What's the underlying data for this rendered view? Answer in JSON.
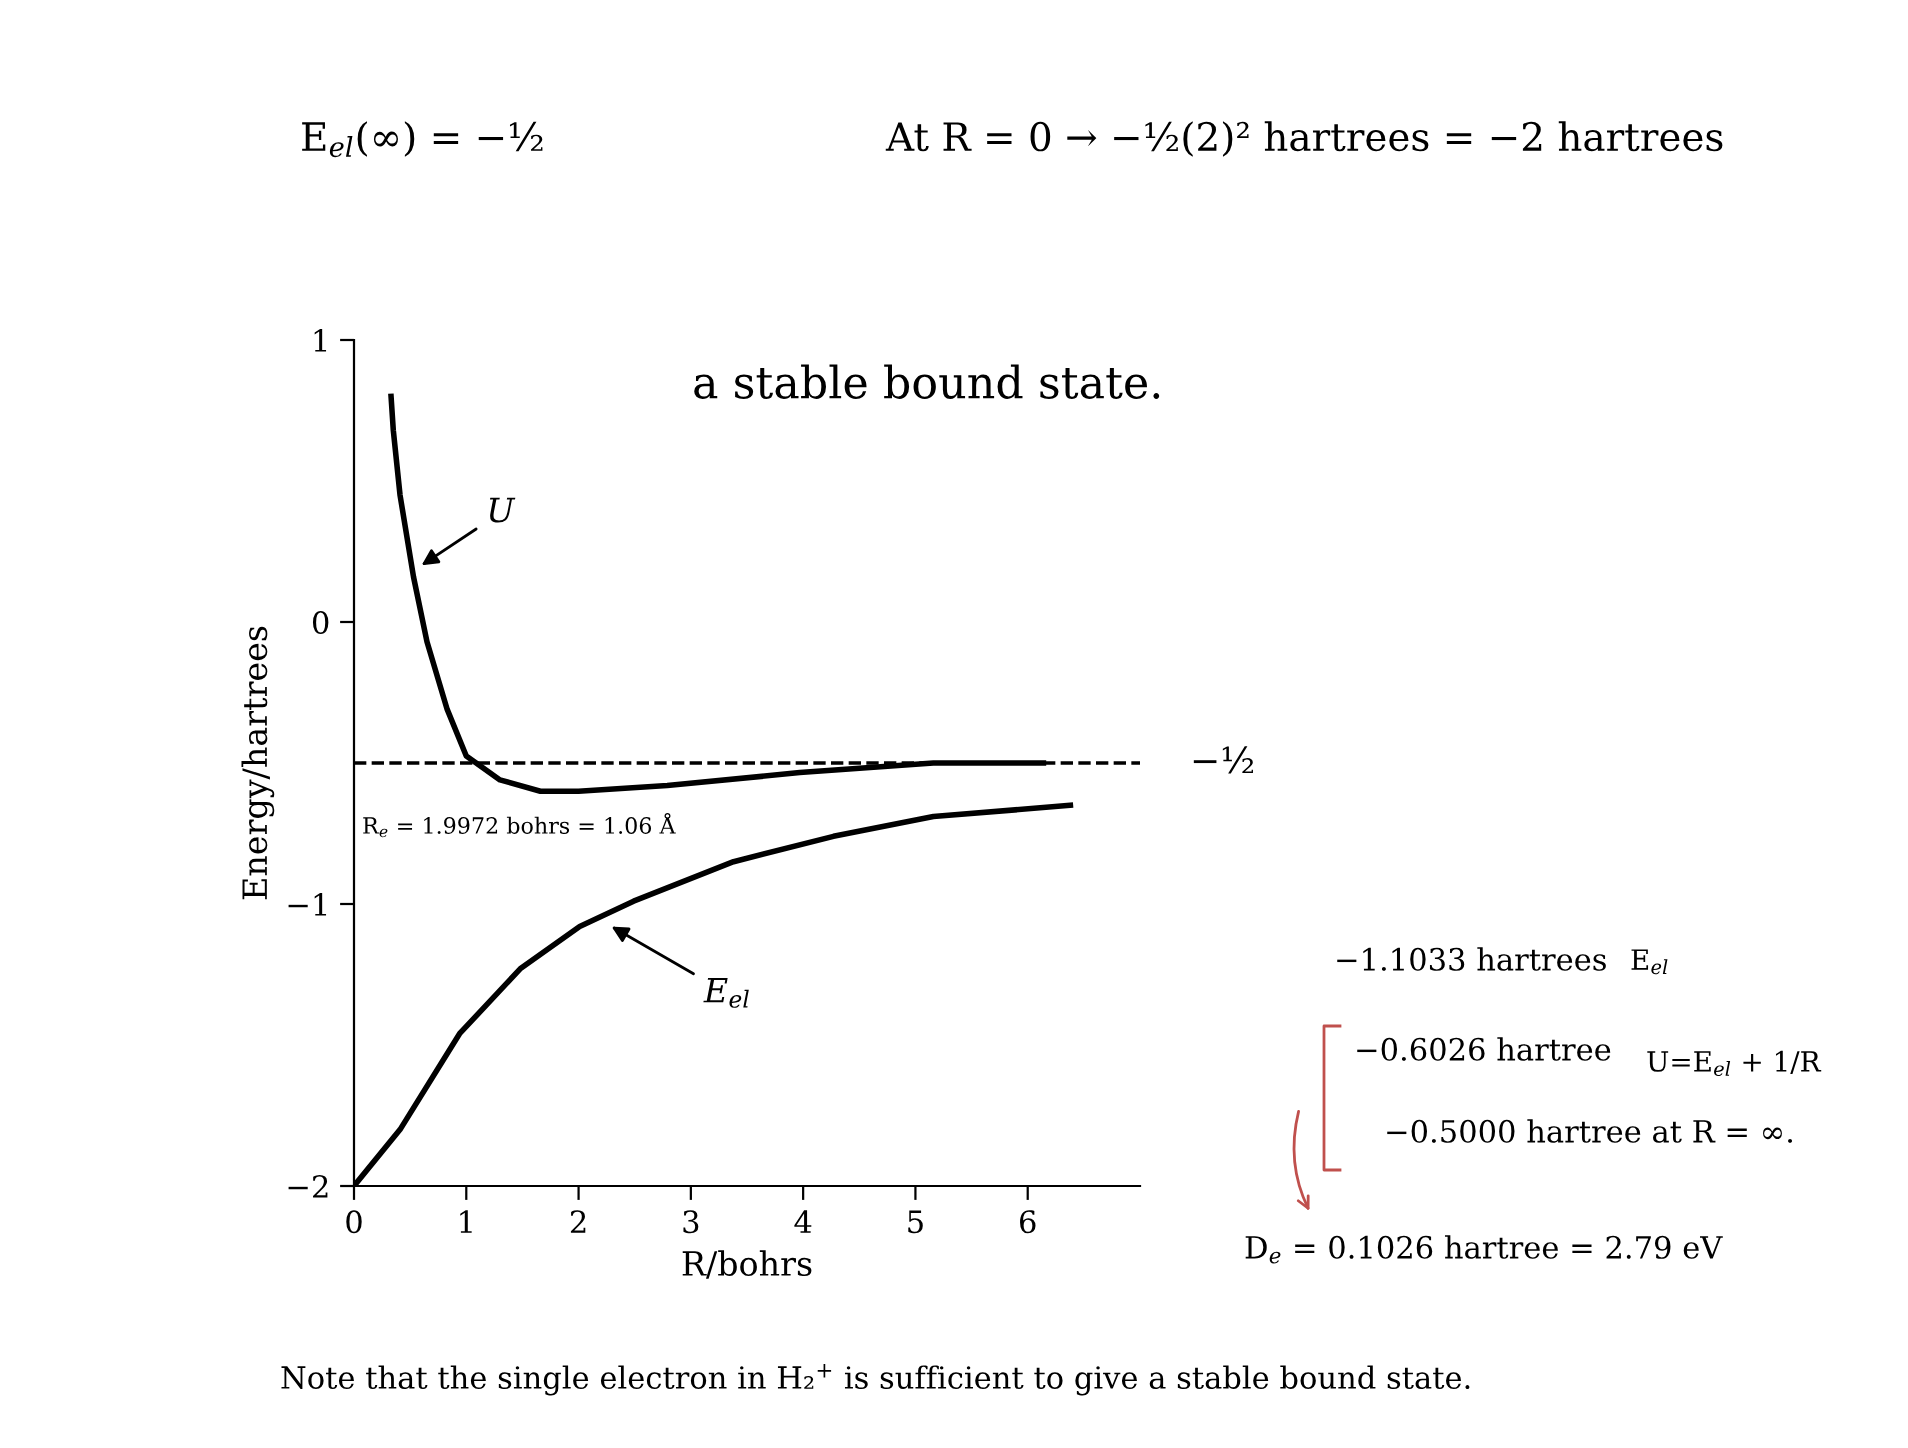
{
  "chart_data": {
    "type": "line",
    "xlabel": "R/bohrs",
    "ylabel": "Energy/hartrees",
    "series": [
      {
        "color": "#000000",
        "x": [
          0.33,
          0.35,
          0.41,
          0.53,
          0.65,
          0.83,
          1.0,
          1.3,
          1.66,
          2.0,
          2.79,
          3.97,
          5.16,
          6.14
        ],
        "values": [
          0.8,
          0.68,
          0.45,
          0.16,
          -0.07,
          -0.31,
          -0.475,
          -0.56,
          -0.6,
          -0.6,
          -0.58,
          -0.534,
          -0.5,
          -0.5
        ]
      },
      {
        "color": "#000000",
        "x": [
          0,
          0.41,
          0.94,
          1.48,
          2.01,
          2.49,
          3.38,
          4.27,
          5.16,
          6.38
        ],
        "values": [
          -2,
          -1.8,
          -1.46,
          -1.23,
          -1.08,
          -0.99,
          -0.85,
          -0.76,
          -0.69,
          -0.65
        ]
      }
    ],
    "xlim": [
      0,
      7
    ],
    "xticks": [
      0,
      1,
      2,
      3,
      4,
      5,
      6
    ],
    "ylim": [
      -2,
      1
    ],
    "yticks": [
      {
        "value": 1,
        "label": "1"
      },
      {
        "value": 0,
        "label": "0"
      },
      {
        "value": -1,
        "label": "−1"
      },
      {
        "value": -2,
        "label": "−2"
      }
    ],
    "ref_lines": [
      {
        "axis": "y",
        "value": -0.5,
        "label": "−½",
        "color": "#000000",
        "line_style": "dashed"
      }
    ],
    "grid": false,
    "legend": false,
    "line_style": "solid",
    "marker": "none",
    "annotations": [
      "E$_{el}$(∞) = −½",
      "At R = 0 → −½(2)² hartrees = −2 hartrees",
      "a stable bound state.",
      "−1.1033 hartrees",
      "E$_{el}$",
      "−0.6026 hartree",
      "U=E$_{el}$ + 1/R",
      "−0.5000 hartree at R = ∞.",
      "D$_{e}$ = 0.1026 hartree = 2.79 eV",
      "R$_{e}$ = 1.9972 bohrs = 1.06 Å",
      "Note that the single electron in H₂$^{+}$ is sufficient to give a stable bound state.",
      {
        "text": "U",
        "x": 0.56,
        "y": 0.19
      },
      {
        "text": "E$_{el}$",
        "x": 2.25,
        "y": -1.07
      }
    ]
  }
}
